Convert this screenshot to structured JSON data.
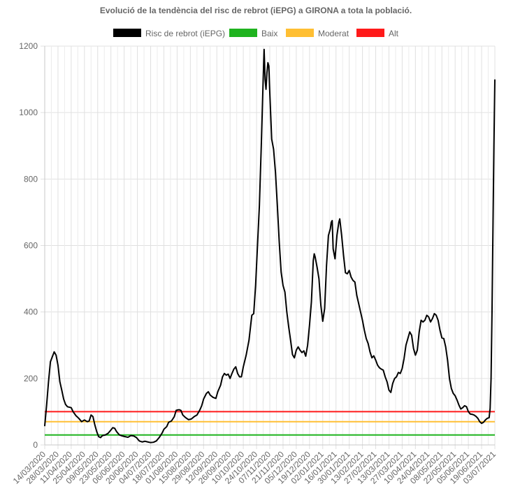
{
  "chart_data": {
    "type": "line",
    "title": "Evolució de la tendència del risc de rebrot (iEPG) a GIRONA a tota la població.",
    "xlabel": "",
    "ylabel": "",
    "ylim": [
      0,
      1200
    ],
    "y_ticks": [
      "0",
      "200",
      "400",
      "600",
      "800",
      "1000",
      "1200"
    ],
    "x_tick_labels": [
      "14/03/2020",
      "28/03/2020",
      "11/04/2020",
      "25/04/2020",
      "09/05/2020",
      "23/05/2020",
      "06/06/2020",
      "20/06/2020",
      "04/07/2020",
      "18/07/2020",
      "01/08/2020",
      "15/08/2020",
      "29/08/2020",
      "12/09/2020",
      "26/09/2020",
      "10/10/2020",
      "24/10/2020",
      "07/11/2020",
      "21/11/2020",
      "05/12/2020",
      "19/12/2020",
      "02/01/2021",
      "16/01/2021",
      "30/01/2021",
      "13/02/2021",
      "27/02/2021",
      "13/03/2021",
      "27/03/2021",
      "10/04/2021",
      "24/04/2021",
      "08/05/2021",
      "22/05/2021",
      "05/06/2021",
      "19/06/2021",
      "03/07/2021"
    ],
    "x_range": [
      "2020-03-14",
      "2021-07-03"
    ],
    "grid": true,
    "legend_position": "top",
    "series": [
      {
        "name": "Risc de rebrot (iEPG)",
        "color": "#000000",
        "points": [
          [
            "2020-03-14",
            58
          ],
          [
            "2020-03-16",
            120
          ],
          [
            "2020-03-18",
            190
          ],
          [
            "2020-03-20",
            250
          ],
          [
            "2020-03-22",
            265
          ],
          [
            "2020-03-24",
            280
          ],
          [
            "2020-03-26",
            270
          ],
          [
            "2020-03-28",
            240
          ],
          [
            "2020-03-30",
            190
          ],
          [
            "2020-04-01",
            165
          ],
          [
            "2020-04-03",
            138
          ],
          [
            "2020-04-05",
            122
          ],
          [
            "2020-04-07",
            115
          ],
          [
            "2020-04-11",
            112
          ],
          [
            "2020-04-13",
            100
          ],
          [
            "2020-04-16",
            88
          ],
          [
            "2020-04-19",
            80
          ],
          [
            "2020-04-22",
            70
          ],
          [
            "2020-04-25",
            75
          ],
          [
            "2020-04-28",
            70
          ],
          [
            "2020-04-30",
            72
          ],
          [
            "2020-05-02",
            90
          ],
          [
            "2020-05-04",
            85
          ],
          [
            "2020-05-06",
            60
          ],
          [
            "2020-05-08",
            40
          ],
          [
            "2020-05-10",
            25
          ],
          [
            "2020-05-12",
            22
          ],
          [
            "2020-05-14",
            28
          ],
          [
            "2020-05-17",
            30
          ],
          [
            "2020-05-20",
            35
          ],
          [
            "2020-05-23",
            45
          ],
          [
            "2020-05-25",
            52
          ],
          [
            "2020-05-27",
            50
          ],
          [
            "2020-05-29",
            40
          ],
          [
            "2020-06-01",
            30
          ],
          [
            "2020-06-04",
            27
          ],
          [
            "2020-06-07",
            25
          ],
          [
            "2020-06-10",
            23
          ],
          [
            "2020-06-13",
            28
          ],
          [
            "2020-06-16",
            27
          ],
          [
            "2020-06-19",
            22
          ],
          [
            "2020-06-22",
            12
          ],
          [
            "2020-06-25",
            9
          ],
          [
            "2020-06-28",
            11
          ],
          [
            "2020-07-01",
            9
          ],
          [
            "2020-07-04",
            7
          ],
          [
            "2020-07-07",
            8
          ],
          [
            "2020-07-10",
            12
          ],
          [
            "2020-07-13",
            22
          ],
          [
            "2020-07-16",
            35
          ],
          [
            "2020-07-18",
            47
          ],
          [
            "2020-07-21",
            55
          ],
          [
            "2020-07-23",
            68
          ],
          [
            "2020-07-26",
            72
          ],
          [
            "2020-07-29",
            85
          ],
          [
            "2020-07-31",
            104
          ],
          [
            "2020-08-03",
            106
          ],
          [
            "2020-08-05",
            104
          ],
          [
            "2020-08-07",
            90
          ],
          [
            "2020-08-10",
            82
          ],
          [
            "2020-08-13",
            76
          ],
          [
            "2020-08-16",
            78
          ],
          [
            "2020-08-19",
            85
          ],
          [
            "2020-08-22",
            90
          ],
          [
            "2020-08-25",
            105
          ],
          [
            "2020-08-27",
            118
          ],
          [
            "2020-08-29",
            138
          ],
          [
            "2020-09-01",
            155
          ],
          [
            "2020-09-03",
            160
          ],
          [
            "2020-09-05",
            150
          ],
          [
            "2020-09-08",
            143
          ],
          [
            "2020-09-11",
            140
          ],
          [
            "2020-09-13",
            160
          ],
          [
            "2020-09-16",
            180
          ],
          [
            "2020-09-18",
            205
          ],
          [
            "2020-09-20",
            215
          ],
          [
            "2020-09-22",
            210
          ],
          [
            "2020-09-24",
            213
          ],
          [
            "2020-09-26",
            200
          ],
          [
            "2020-09-28",
            215
          ],
          [
            "2020-09-30",
            228
          ],
          [
            "2020-10-02",
            235
          ],
          [
            "2020-10-04",
            215
          ],
          [
            "2020-10-06",
            205
          ],
          [
            "2020-10-08",
            205
          ],
          [
            "2020-10-10",
            235
          ],
          [
            "2020-10-13",
            270
          ],
          [
            "2020-10-16",
            315
          ],
          [
            "2020-10-19",
            390
          ],
          [
            "2020-10-21",
            395
          ],
          [
            "2020-10-23",
            480
          ],
          [
            "2020-10-25",
            600
          ],
          [
            "2020-10-27",
            720
          ],
          [
            "2020-10-29",
            900
          ],
          [
            "2020-10-31",
            1100
          ],
          [
            "2020-11-01",
            1190
          ],
          [
            "2020-11-02",
            1100
          ],
          [
            "2020-11-03",
            1070
          ],
          [
            "2020-11-04",
            1120
          ],
          [
            "2020-11-05",
            1150
          ],
          [
            "2020-11-06",
            1140
          ],
          [
            "2020-11-07",
            1060
          ],
          [
            "2020-11-09",
            920
          ],
          [
            "2020-11-11",
            890
          ],
          [
            "2020-11-13",
            820
          ],
          [
            "2020-11-15",
            720
          ],
          [
            "2020-11-17",
            610
          ],
          [
            "2020-11-19",
            520
          ],
          [
            "2020-11-21",
            480
          ],
          [
            "2020-11-23",
            460
          ],
          [
            "2020-11-25",
            400
          ],
          [
            "2020-11-27",
            355
          ],
          [
            "2020-11-29",
            315
          ],
          [
            "2020-12-01",
            272
          ],
          [
            "2020-12-03",
            262
          ],
          [
            "2020-12-05",
            285
          ],
          [
            "2020-12-07",
            295
          ],
          [
            "2020-12-09",
            285
          ],
          [
            "2020-12-11",
            278
          ],
          [
            "2020-12-13",
            283
          ],
          [
            "2020-12-15",
            267
          ],
          [
            "2020-12-17",
            300
          ],
          [
            "2020-12-19",
            360
          ],
          [
            "2020-12-21",
            430
          ],
          [
            "2020-12-23",
            555
          ],
          [
            "2020-12-24",
            575
          ],
          [
            "2020-12-25",
            565
          ],
          [
            "2020-12-27",
            535
          ],
          [
            "2020-12-29",
            500
          ],
          [
            "2020-12-31",
            420
          ],
          [
            "2021-01-02",
            372
          ],
          [
            "2021-01-04",
            410
          ],
          [
            "2021-01-06",
            540
          ],
          [
            "2021-01-08",
            630
          ],
          [
            "2021-01-10",
            650
          ],
          [
            "2021-01-11",
            670
          ],
          [
            "2021-01-12",
            675
          ],
          [
            "2021-01-13",
            590
          ],
          [
            "2021-01-15",
            560
          ],
          [
            "2021-01-17",
            630
          ],
          [
            "2021-01-19",
            670
          ],
          [
            "2021-01-20",
            680
          ],
          [
            "2021-01-22",
            630
          ],
          [
            "2021-01-24",
            570
          ],
          [
            "2021-01-26",
            518
          ],
          [
            "2021-01-28",
            515
          ],
          [
            "2021-01-30",
            525
          ],
          [
            "2021-02-01",
            505
          ],
          [
            "2021-02-03",
            495
          ],
          [
            "2021-02-05",
            490
          ],
          [
            "2021-02-07",
            450
          ],
          [
            "2021-02-09",
            425
          ],
          [
            "2021-02-11",
            400
          ],
          [
            "2021-02-13",
            375
          ],
          [
            "2021-02-15",
            345
          ],
          [
            "2021-02-17",
            320
          ],
          [
            "2021-02-19",
            305
          ],
          [
            "2021-02-21",
            280
          ],
          [
            "2021-02-23",
            262
          ],
          [
            "2021-02-25",
            268
          ],
          [
            "2021-02-27",
            255
          ],
          [
            "2021-03-01",
            240
          ],
          [
            "2021-03-03",
            232
          ],
          [
            "2021-03-05",
            228
          ],
          [
            "2021-03-07",
            225
          ],
          [
            "2021-03-09",
            205
          ],
          [
            "2021-03-11",
            190
          ],
          [
            "2021-03-13",
            165
          ],
          [
            "2021-03-15",
            158
          ],
          [
            "2021-03-17",
            185
          ],
          [
            "2021-03-19",
            200
          ],
          [
            "2021-03-21",
            205
          ],
          [
            "2021-03-23",
            218
          ],
          [
            "2021-03-25",
            215
          ],
          [
            "2021-03-27",
            230
          ],
          [
            "2021-03-29",
            260
          ],
          [
            "2021-03-31",
            300
          ],
          [
            "2021-04-02",
            320
          ],
          [
            "2021-04-04",
            340
          ],
          [
            "2021-04-06",
            330
          ],
          [
            "2021-04-08",
            290
          ],
          [
            "2021-04-10",
            270
          ],
          [
            "2021-04-12",
            285
          ],
          [
            "2021-04-14",
            340
          ],
          [
            "2021-04-16",
            375
          ],
          [
            "2021-04-18",
            370
          ],
          [
            "2021-04-20",
            375
          ],
          [
            "2021-04-22",
            390
          ],
          [
            "2021-04-24",
            385
          ],
          [
            "2021-04-26",
            370
          ],
          [
            "2021-04-28",
            380
          ],
          [
            "2021-04-30",
            395
          ],
          [
            "2021-05-02",
            390
          ],
          [
            "2021-05-04",
            375
          ],
          [
            "2021-05-06",
            345
          ],
          [
            "2021-05-08",
            322
          ],
          [
            "2021-05-10",
            320
          ],
          [
            "2021-05-12",
            295
          ],
          [
            "2021-05-14",
            255
          ],
          [
            "2021-05-16",
            200
          ],
          [
            "2021-05-18",
            170
          ],
          [
            "2021-05-20",
            155
          ],
          [
            "2021-05-22",
            148
          ],
          [
            "2021-05-24",
            135
          ],
          [
            "2021-05-26",
            120
          ],
          [
            "2021-05-28",
            108
          ],
          [
            "2021-05-30",
            112
          ],
          [
            "2021-06-01",
            118
          ],
          [
            "2021-06-03",
            115
          ],
          [
            "2021-06-05",
            100
          ],
          [
            "2021-06-07",
            93
          ],
          [
            "2021-06-09",
            92
          ],
          [
            "2021-06-11",
            90
          ],
          [
            "2021-06-13",
            86
          ],
          [
            "2021-06-15",
            80
          ],
          [
            "2021-06-17",
            70
          ],
          [
            "2021-06-19",
            65
          ],
          [
            "2021-06-21",
            68
          ],
          [
            "2021-06-23",
            75
          ],
          [
            "2021-06-25",
            80
          ],
          [
            "2021-06-27",
            82
          ],
          [
            "2021-06-28",
            110
          ],
          [
            "2021-06-29",
            200
          ],
          [
            "2021-06-30",
            400
          ],
          [
            "2021-07-01",
            650
          ],
          [
            "2021-07-02",
            900
          ],
          [
            "2021-07-03",
            1098
          ]
        ]
      },
      {
        "name": "Baix",
        "color": "#1fb31f",
        "value": 30
      },
      {
        "name": "Moderat",
        "color": "#ffbf33",
        "value": 70
      },
      {
        "name": "Alt",
        "color": "#ff1a1a",
        "value": 100
      }
    ]
  }
}
